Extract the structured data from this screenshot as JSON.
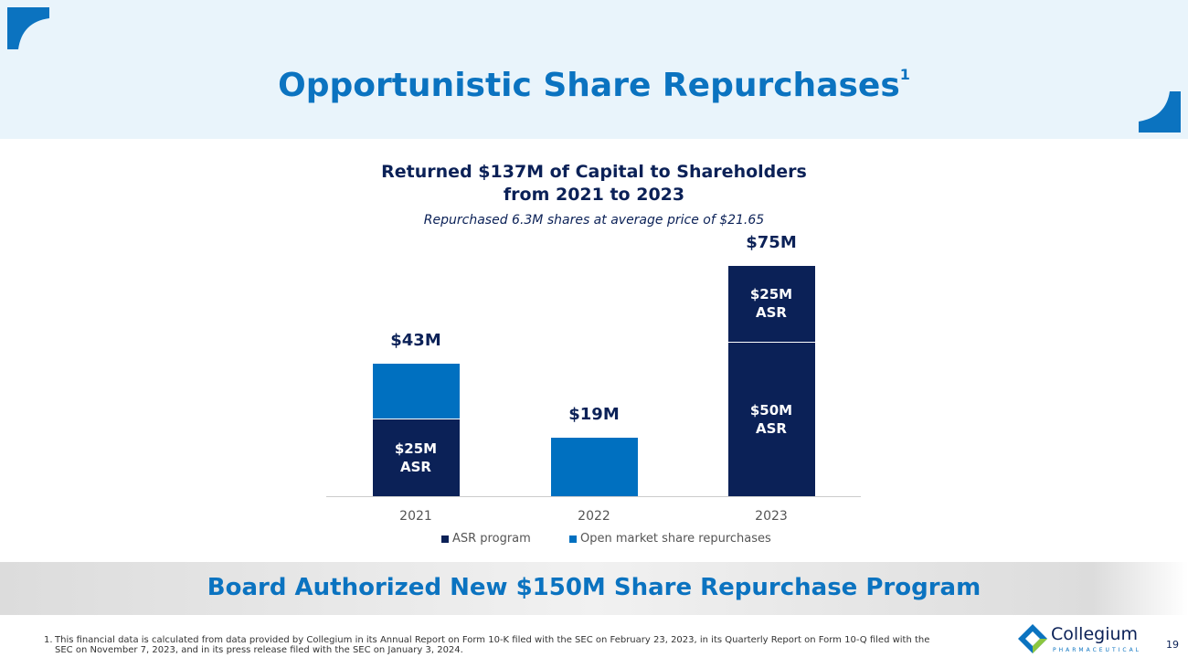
{
  "header": {
    "title": "Opportunistic Share Repurchases",
    "title_footnote": "1"
  },
  "chart_data": {
    "type": "stacked-bar",
    "title": "Returned $137M of Capital to Shareholders from 2021 to 2023",
    "subtitle": "Repurchased 6.3M shares at average price of $21.65",
    "categories": [
      "2021",
      "2022",
      "2023"
    ],
    "series": [
      {
        "name": "ASR program",
        "color": "#0b2157",
        "values": [
          25,
          null,
          50
        ],
        "value_labels": [
          "$25M\nASR",
          null,
          "$50M\nASR"
        ]
      },
      {
        "name": "Open market share repurchases",
        "color": "#0070c0",
        "values": [
          18,
          19,
          null
        ]
      },
      {
        "color": "#0b2157",
        "values": [
          null,
          null,
          25
        ],
        "value_labels": [
          null,
          null,
          "$25M\nASR"
        ]
      }
    ],
    "totals": {
      "values": [
        43,
        19,
        75
      ],
      "value_labels": [
        "$43M",
        "$19M",
        "$75M"
      ]
    },
    "ylim": [
      0,
      80
    ],
    "legend": "bottom"
  },
  "banner": "Board Authorized New $150M Share Repurchase Program",
  "footnote": {
    "marker": "1.",
    "text": "This financial data is calculated from data provided by Collegium in its Annual Report on Form 10-K filed with the SEC on February 23, 2023, in its Quarterly Report on Form 10-Q filed with the SEC on November 7, 2023, and in its press release filed with the SEC on January 3, 2024."
  },
  "logo": {
    "name": "Collegium",
    "tagline": "PHARMACEUTICAL"
  },
  "page_number": "19"
}
